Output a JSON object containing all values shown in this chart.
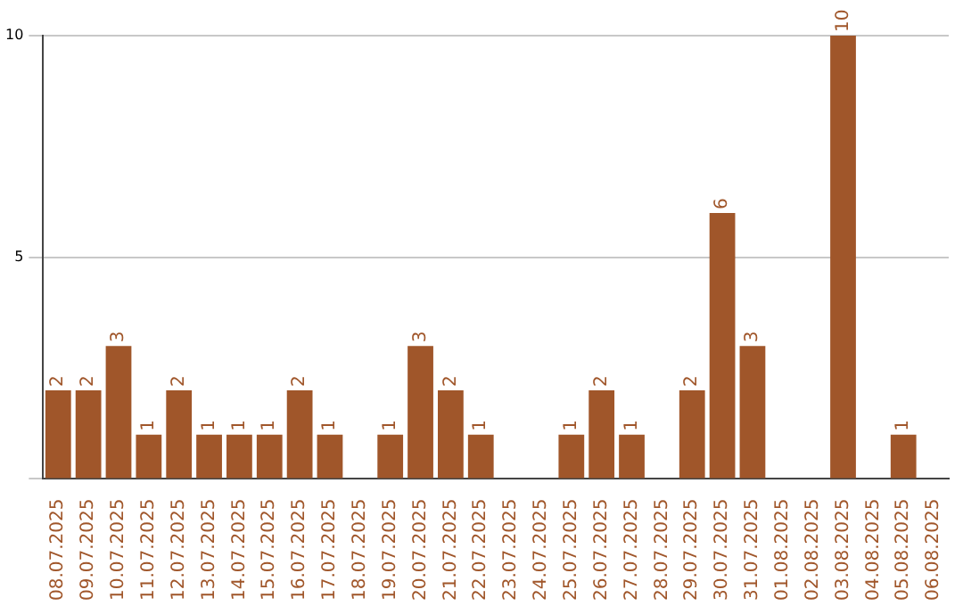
{
  "chart_data": {
    "type": "bar",
    "categories": [
      "08.07.2025",
      "09.07.2025",
      "10.07.2025",
      "11.07.2025",
      "12.07.2025",
      "13.07.2025",
      "14.07.2025",
      "15.07.2025",
      "16.07.2025",
      "17.07.2025",
      "18.07.2025",
      "19.07.2025",
      "20.07.2025",
      "21.07.2025",
      "22.07.2025",
      "23.07.2025",
      "24.07.2025",
      "25.07.2025",
      "26.07.2025",
      "27.07.2025",
      "28.07.2025",
      "29.07.2025",
      "30.07.2025",
      "31.07.2025",
      "01.08.2025",
      "02.08.2025",
      "03.08.2025",
      "04.08.2025",
      "05.08.2025",
      "06.08.2025"
    ],
    "values": [
      2,
      2,
      3,
      1,
      2,
      1,
      1,
      1,
      2,
      1,
      0,
      1,
      3,
      2,
      1,
      0,
      0,
      1,
      2,
      1,
      0,
      2,
      6,
      3,
      0,
      0,
      10,
      0,
      1,
      0
    ],
    "value_labels": [
      "2",
      "2",
      "3",
      "1",
      "2",
      "1",
      "1",
      "1",
      "2",
      "1",
      null,
      "1",
      "3",
      "2",
      "1",
      null,
      null,
      "1",
      "2",
      "1",
      null,
      "2",
      "6",
      "3",
      null,
      null,
      "10",
      null,
      "1",
      null
    ],
    "color": "#a0562a",
    "ylim": [
      0,
      10
    ],
    "yticks": [
      {
        "value": 0,
        "label": null
      },
      5,
      10
    ],
    "grid": "y"
  }
}
